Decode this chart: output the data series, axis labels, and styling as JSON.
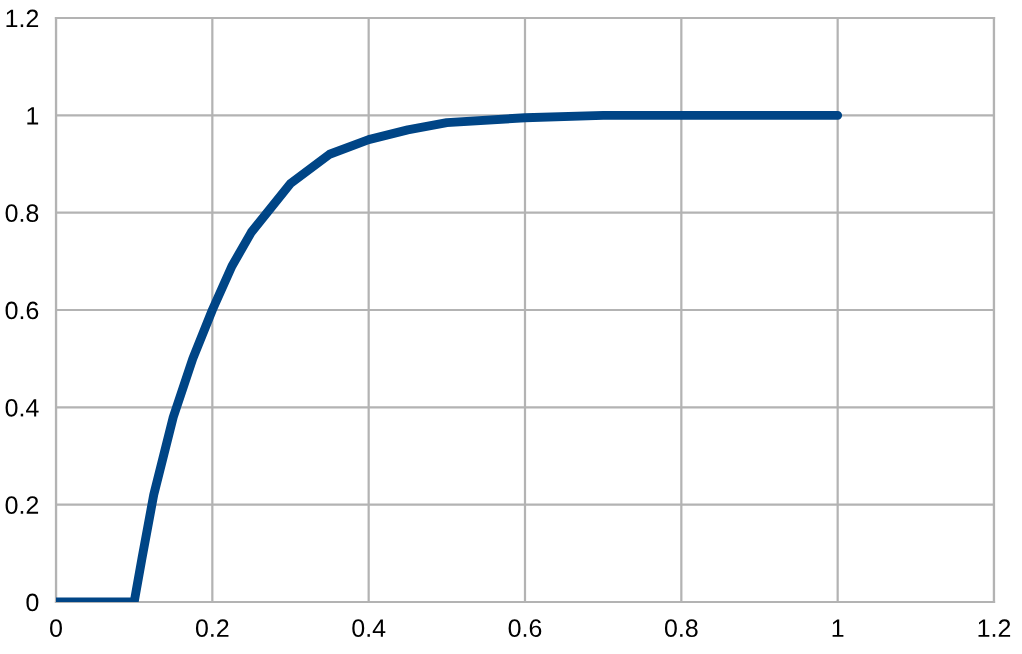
{
  "chart_data": {
    "type": "line",
    "x": [
      0,
      0.1,
      0.11,
      0.125,
      0.15,
      0.175,
      0.2,
      0.225,
      0.25,
      0.3,
      0.35,
      0.4,
      0.45,
      0.5,
      0.6,
      0.7,
      0.8,
      0.9,
      1
    ],
    "series": [
      {
        "color": "#004586",
        "values": [
          0,
          0,
          0.09,
          0.22,
          0.38,
          0.5,
          0.6,
          0.69,
          0.76,
          0.86,
          0.92,
          0.95,
          0.97,
          0.985,
          0.995,
          1,
          1,
          1,
          1
        ]
      }
    ],
    "xlim": [
      0,
      1.2
    ],
    "ylim": [
      0,
      1.2
    ],
    "xticks": [
      0,
      0.2,
      0.4,
      0.6,
      0.8,
      1,
      1.2
    ],
    "yticks": [
      0,
      0.2,
      0.4,
      0.6,
      0.8,
      1,
      1.2
    ],
    "grid": true,
    "marker": "none",
    "line_style": "solid"
  }
}
